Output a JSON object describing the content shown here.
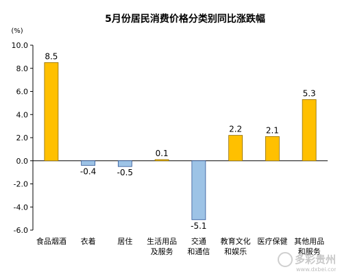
{
  "chart_data": {
    "type": "bar",
    "title": "5月份居民消费价格分类别同比涨跌幅",
    "unit": "(%)",
    "ylim": [
      -6.0,
      10.0
    ],
    "yticks": [
      "10.0",
      "8.0",
      "6.0",
      "4.0",
      "2.0",
      "0.0",
      "-2.0",
      "-4.0",
      "-6.0"
    ],
    "categories": [
      [
        "食品烟酒"
      ],
      [
        "衣着"
      ],
      [
        "居住"
      ],
      [
        "生活用品",
        "及服务"
      ],
      [
        "交通",
        "和通信"
      ],
      [
        "教育文化",
        "和娱乐"
      ],
      [
        "医疗保健"
      ],
      [
        "其他用品",
        "和服务"
      ]
    ],
    "values": [
      8.5,
      -0.4,
      -0.5,
      0.1,
      -5.1,
      2.2,
      2.1,
      5.3
    ],
    "value_labels": [
      "8.5",
      "-0.4",
      "-0.5",
      "0.1",
      "-5.1",
      "2.2",
      "2.1",
      "5.3"
    ],
    "colors": {
      "positive": "#ffc000",
      "positive_edge": "#8c6a00",
      "negative": "#9dc3e6",
      "negative_edge": "#2f5597"
    },
    "grid": false,
    "legend": "none"
  },
  "watermark": {
    "text": "多彩贵州",
    "url": "www.dxbei.com"
  }
}
